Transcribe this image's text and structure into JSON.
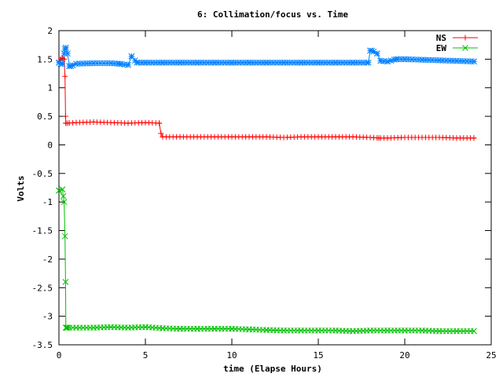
{
  "chart_data": {
    "type": "line",
    "title": "6: Collimation/focus vs. Time",
    "xlabel": "time (Elapse Hours)",
    "ylabel": "Volts",
    "xlim": [
      0,
      25
    ],
    "ylim": [
      -3.5,
      2
    ],
    "xticks": [
      0,
      5,
      10,
      15,
      20,
      25
    ],
    "yticks": [
      2,
      1.5,
      1,
      0.5,
      0,
      -0.5,
      -1,
      -1.5,
      -2,
      -2.5,
      -3,
      -3.5
    ],
    "xtick_labels": [
      "0",
      "5",
      "10",
      "15",
      "20",
      "25"
    ],
    "ytick_labels": [
      "2",
      "1.5",
      "1",
      "0.5",
      "0",
      "-0.5",
      "-1",
      "-1.5",
      "-2",
      "-2.5",
      "-3",
      "-3.5"
    ],
    "grid": false,
    "legend_position": "top-right",
    "series": [
      {
        "name": "NS",
        "color": "#ff0000",
        "marker": "plus",
        "x": [
          0,
          0.1,
          0.2,
          0.3,
          0.35,
          0.38,
          0.4,
          0.5,
          1,
          2,
          3,
          4,
          5,
          5.8,
          5.9,
          6,
          7,
          8,
          9,
          10,
          11,
          12,
          13,
          14,
          15,
          16,
          17,
          18,
          18.5,
          19,
          20,
          21,
          22,
          23,
          24
        ],
        "y": [
          1.47,
          1.5,
          1.52,
          1.5,
          1.2,
          0.5,
          0.38,
          0.38,
          0.39,
          0.4,
          0.39,
          0.38,
          0.39,
          0.38,
          0.2,
          0.14,
          0.14,
          0.14,
          0.14,
          0.14,
          0.14,
          0.14,
          0.13,
          0.14,
          0.14,
          0.14,
          0.14,
          0.13,
          0.12,
          0.12,
          0.13,
          0.13,
          0.13,
          0.12,
          0.12
        ]
      },
      {
        "name": "EW",
        "color": "#00c000",
        "marker": "x",
        "x": [
          0,
          0.2,
          0.25,
          0.3,
          0.35,
          0.38,
          0.4,
          0.45,
          0.5,
          1,
          2,
          3,
          4,
          5,
          6,
          7,
          8,
          9,
          10,
          11,
          12,
          13,
          14,
          15,
          16,
          17,
          18,
          19,
          20,
          21,
          22,
          23,
          24
        ],
        "y": [
          -0.8,
          -0.78,
          -0.9,
          -1,
          -1.6,
          -2.4,
          -3.2,
          -3.2,
          -3.2,
          -3.2,
          -3.2,
          -3.19,
          -3.2,
          -3.19,
          -3.21,
          -3.22,
          -3.22,
          -3.22,
          -3.22,
          -3.23,
          -3.24,
          -3.25,
          -3.25,
          -3.25,
          -3.25,
          -3.26,
          -3.25,
          -3.25,
          -3.25,
          -3.25,
          -3.26,
          -3.26,
          -3.26
        ]
      },
      {
        "name": "",
        "color": "#0080ff",
        "marker": "star",
        "x": [
          0,
          0.1,
          0.2,
          0.3,
          0.35,
          0.4,
          0.5,
          0.6,
          0.7,
          1,
          2,
          3,
          3.5,
          4,
          4.2,
          4.5,
          5,
          6,
          7,
          8,
          9,
          10,
          11,
          12,
          13,
          14,
          15,
          16,
          17,
          17.9,
          18,
          18.1,
          18.4,
          18.6,
          19,
          19.5,
          20,
          21,
          22,
          23,
          24
        ],
        "y": [
          1.44,
          1.42,
          1.42,
          1.6,
          1.68,
          1.7,
          1.6,
          1.38,
          1.38,
          1.42,
          1.43,
          1.43,
          1.42,
          1.4,
          1.55,
          1.44,
          1.44,
          1.44,
          1.44,
          1.44,
          1.44,
          1.44,
          1.44,
          1.44,
          1.44,
          1.44,
          1.44,
          1.44,
          1.44,
          1.44,
          1.65,
          1.65,
          1.6,
          1.47,
          1.46,
          1.5,
          1.5,
          1.49,
          1.48,
          1.47,
          1.46
        ]
      }
    ]
  }
}
